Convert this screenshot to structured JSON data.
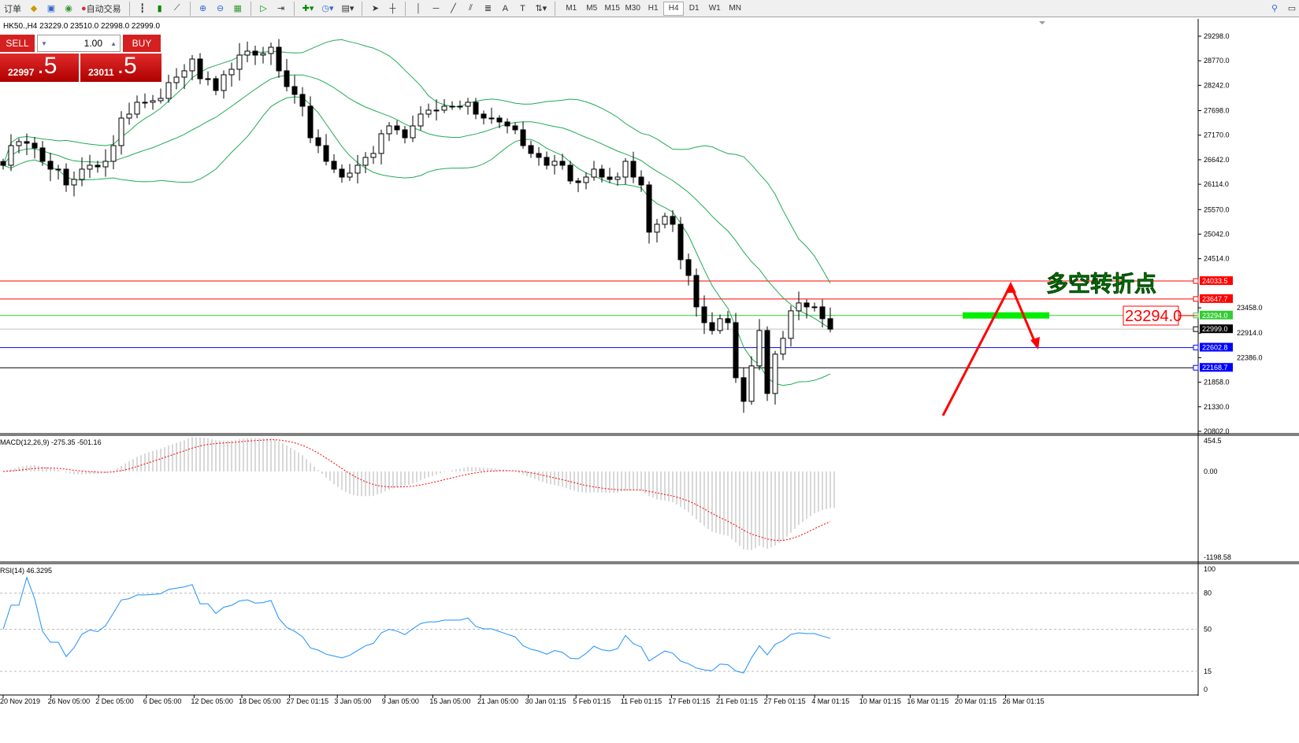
{
  "toolbar": {
    "orders_label": "订单",
    "autotrade_label": "自动交易",
    "timeframes": [
      "M1",
      "M5",
      "M15",
      "M30",
      "H1",
      "H4",
      "D1",
      "W1",
      "MN"
    ],
    "active_timeframe": "H4"
  },
  "header": {
    "info": "HK50.,H4  23229.0 23510.0 22998.0 22999.0"
  },
  "trade_panel": {
    "sell_label": "SELL",
    "buy_label": "BUY",
    "lot": "1.00",
    "sell_big": "22997",
    "sell_small": ".5",
    "buy_big": "23011",
    "buy_small": ".5"
  },
  "price_axis": [
    "29298.0",
    "28770.0",
    "28242.0",
    "27698.0",
    "27170.0",
    "26642.0",
    "26114.0",
    "25570.0",
    "25042.0",
    "24514.0",
    "23458.0",
    "22914.0",
    "22386.0",
    "21858.0",
    "21330.0",
    "20802.0"
  ],
  "levels": [
    {
      "value": "24033.5",
      "color": "#ff0000"
    },
    {
      "value": "23647.7",
      "color": "#ff0000"
    },
    {
      "value": "23294.0",
      "color": "#33cc33"
    },
    {
      "value": "22999.0",
      "color": "#000000"
    },
    {
      "value": "22602.8",
      "color": "#0000ff"
    },
    {
      "value": "22168.7",
      "color": "#0000ff"
    }
  ],
  "annotations": {
    "title": "多空转折点",
    "price_box": "23294.0",
    "text_color": "#00cc00",
    "arrow_color": "#ff0000"
  },
  "macd": {
    "label": "MACD(12,26,9) -275.35 -501.16",
    "axis": [
      "454.5",
      "0.00",
      "-1198.58"
    ]
  },
  "rsi": {
    "label": "RSI(14) 46.3295",
    "axis": [
      "100",
      "80",
      "50",
      "15",
      "0"
    ]
  },
  "time_axis": [
    "20 Nov 2019",
    "26 Nov 05:00",
    "2 Dec 05:00",
    "6 Dec 05:00",
    "12 Dec 05:00",
    "18 Dec 05:00",
    "27 Dec 01:15",
    "3 Jan 05:00",
    "9 Jan 05:00",
    "15 Jan 05:00",
    "21 Jan 05:00",
    "30 Jan 01:15",
    "5 Feb 01:15",
    "11 Feb 01:15",
    "17 Feb 01:15",
    "21 Feb 01:15",
    "27 Feb 01:15",
    "4 Mar 01:15",
    "10 Mar 01:15",
    "16 Mar 01:15",
    "20 Mar 01:15",
    "26 Mar 01:15"
  ],
  "chart_data": {
    "type": "candlestick",
    "symbol": "HK50.",
    "timeframe": "H4",
    "ylim": [
      20802,
      29298
    ],
    "closes": [
      26523,
      26946,
      27031,
      26997,
      26895,
      26608,
      26439,
      26439,
      26100,
      26219,
      26439,
      26523,
      26489,
      26608,
      26946,
      27538,
      27623,
      27877,
      27877,
      27911,
      27961,
      28300,
      28418,
      28554,
      28807,
      28384,
      28384,
      28131,
      28469,
      28587,
      28892,
      28977,
      28892,
      28926,
      29061,
      28554,
      28215,
      28046,
      27792,
      27115,
      26946,
      26608,
      26439,
      26269,
      26354,
      26523,
      26692,
      26777,
      27200,
      27369,
      27285,
      27115,
      27369,
      27623,
      27708,
      27708,
      27792,
      27792,
      27792,
      27877,
      27623,
      27538,
      27538,
      27454,
      27369,
      27285,
      26946,
      26777,
      26692,
      26523,
      26608,
      26523,
      26185,
      26151,
      26269,
      26439,
      26269,
      26219,
      26269,
      26608,
      26269,
      26100,
      25085,
      25254,
      25423,
      25254,
      24493,
      24154,
      23478,
      23139,
      22970,
      23224,
      23139,
      21955,
      21447,
      22209,
      22970,
      21616,
      22462,
      22801,
      23393,
      23562,
      23478,
      23478,
      23224,
      22999
    ]
  }
}
